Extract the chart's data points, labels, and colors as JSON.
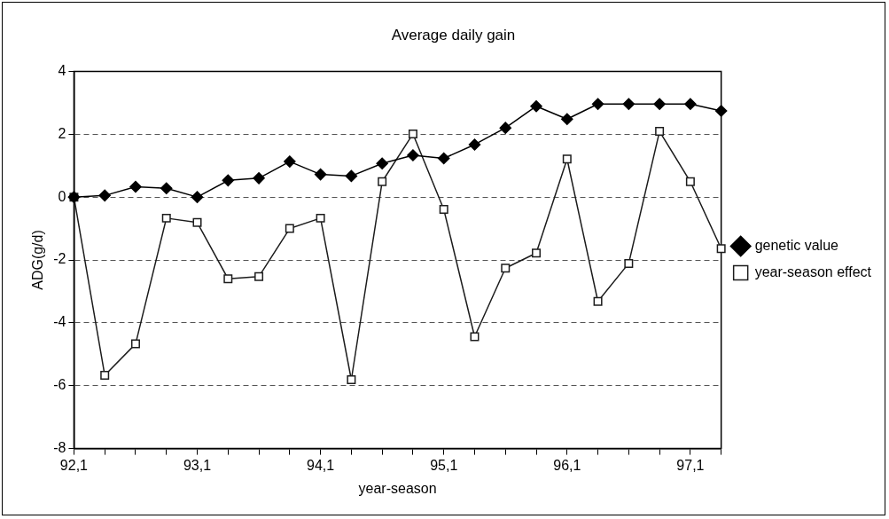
{
  "chart_data": {
    "type": "line",
    "title": "Average daily gain",
    "xlabel": "year-season",
    "ylabel": "ADG(g/d)",
    "categories": [
      "92,1",
      null,
      null,
      null,
      "93,1",
      null,
      null,
      null,
      "94,1",
      null,
      null,
      null,
      "95,1",
      null,
      null,
      null,
      "96,1",
      null,
      null,
      null,
      "97,1",
      null
    ],
    "series": [
      {
        "name": "genetic value",
        "color": "#000000",
        "marker": "diamond",
        "values": [
          0,
          0.05,
          0.33,
          0.28,
          0,
          0.53,
          0.6,
          1.13,
          0.72,
          0.67,
          1.07,
          1.33,
          1.23,
          1.67,
          2.2,
          2.89,
          2.48,
          2.96,
          2.96,
          2.96,
          2.96,
          2.74
        ]
      },
      {
        "name": "year-season effect",
        "color": "#1c1c1c",
        "marker": "square",
        "values": [
          0,
          -5.67,
          -4.67,
          -0.67,
          -0.81,
          -2.6,
          -2.53,
          -1.0,
          -0.67,
          -5.81,
          0.49,
          2.01,
          -0.39,
          -4.44,
          -2.26,
          -1.78,
          1.21,
          -3.32,
          -2.11,
          2.09,
          0.49,
          -1.64
        ]
      }
    ],
    "ylim": [
      -8,
      4
    ],
    "yticks": [
      -8,
      -6,
      -4,
      -2,
      0,
      2,
      4
    ],
    "grid": "y",
    "legend": "right",
    "line_style": "solid"
  }
}
